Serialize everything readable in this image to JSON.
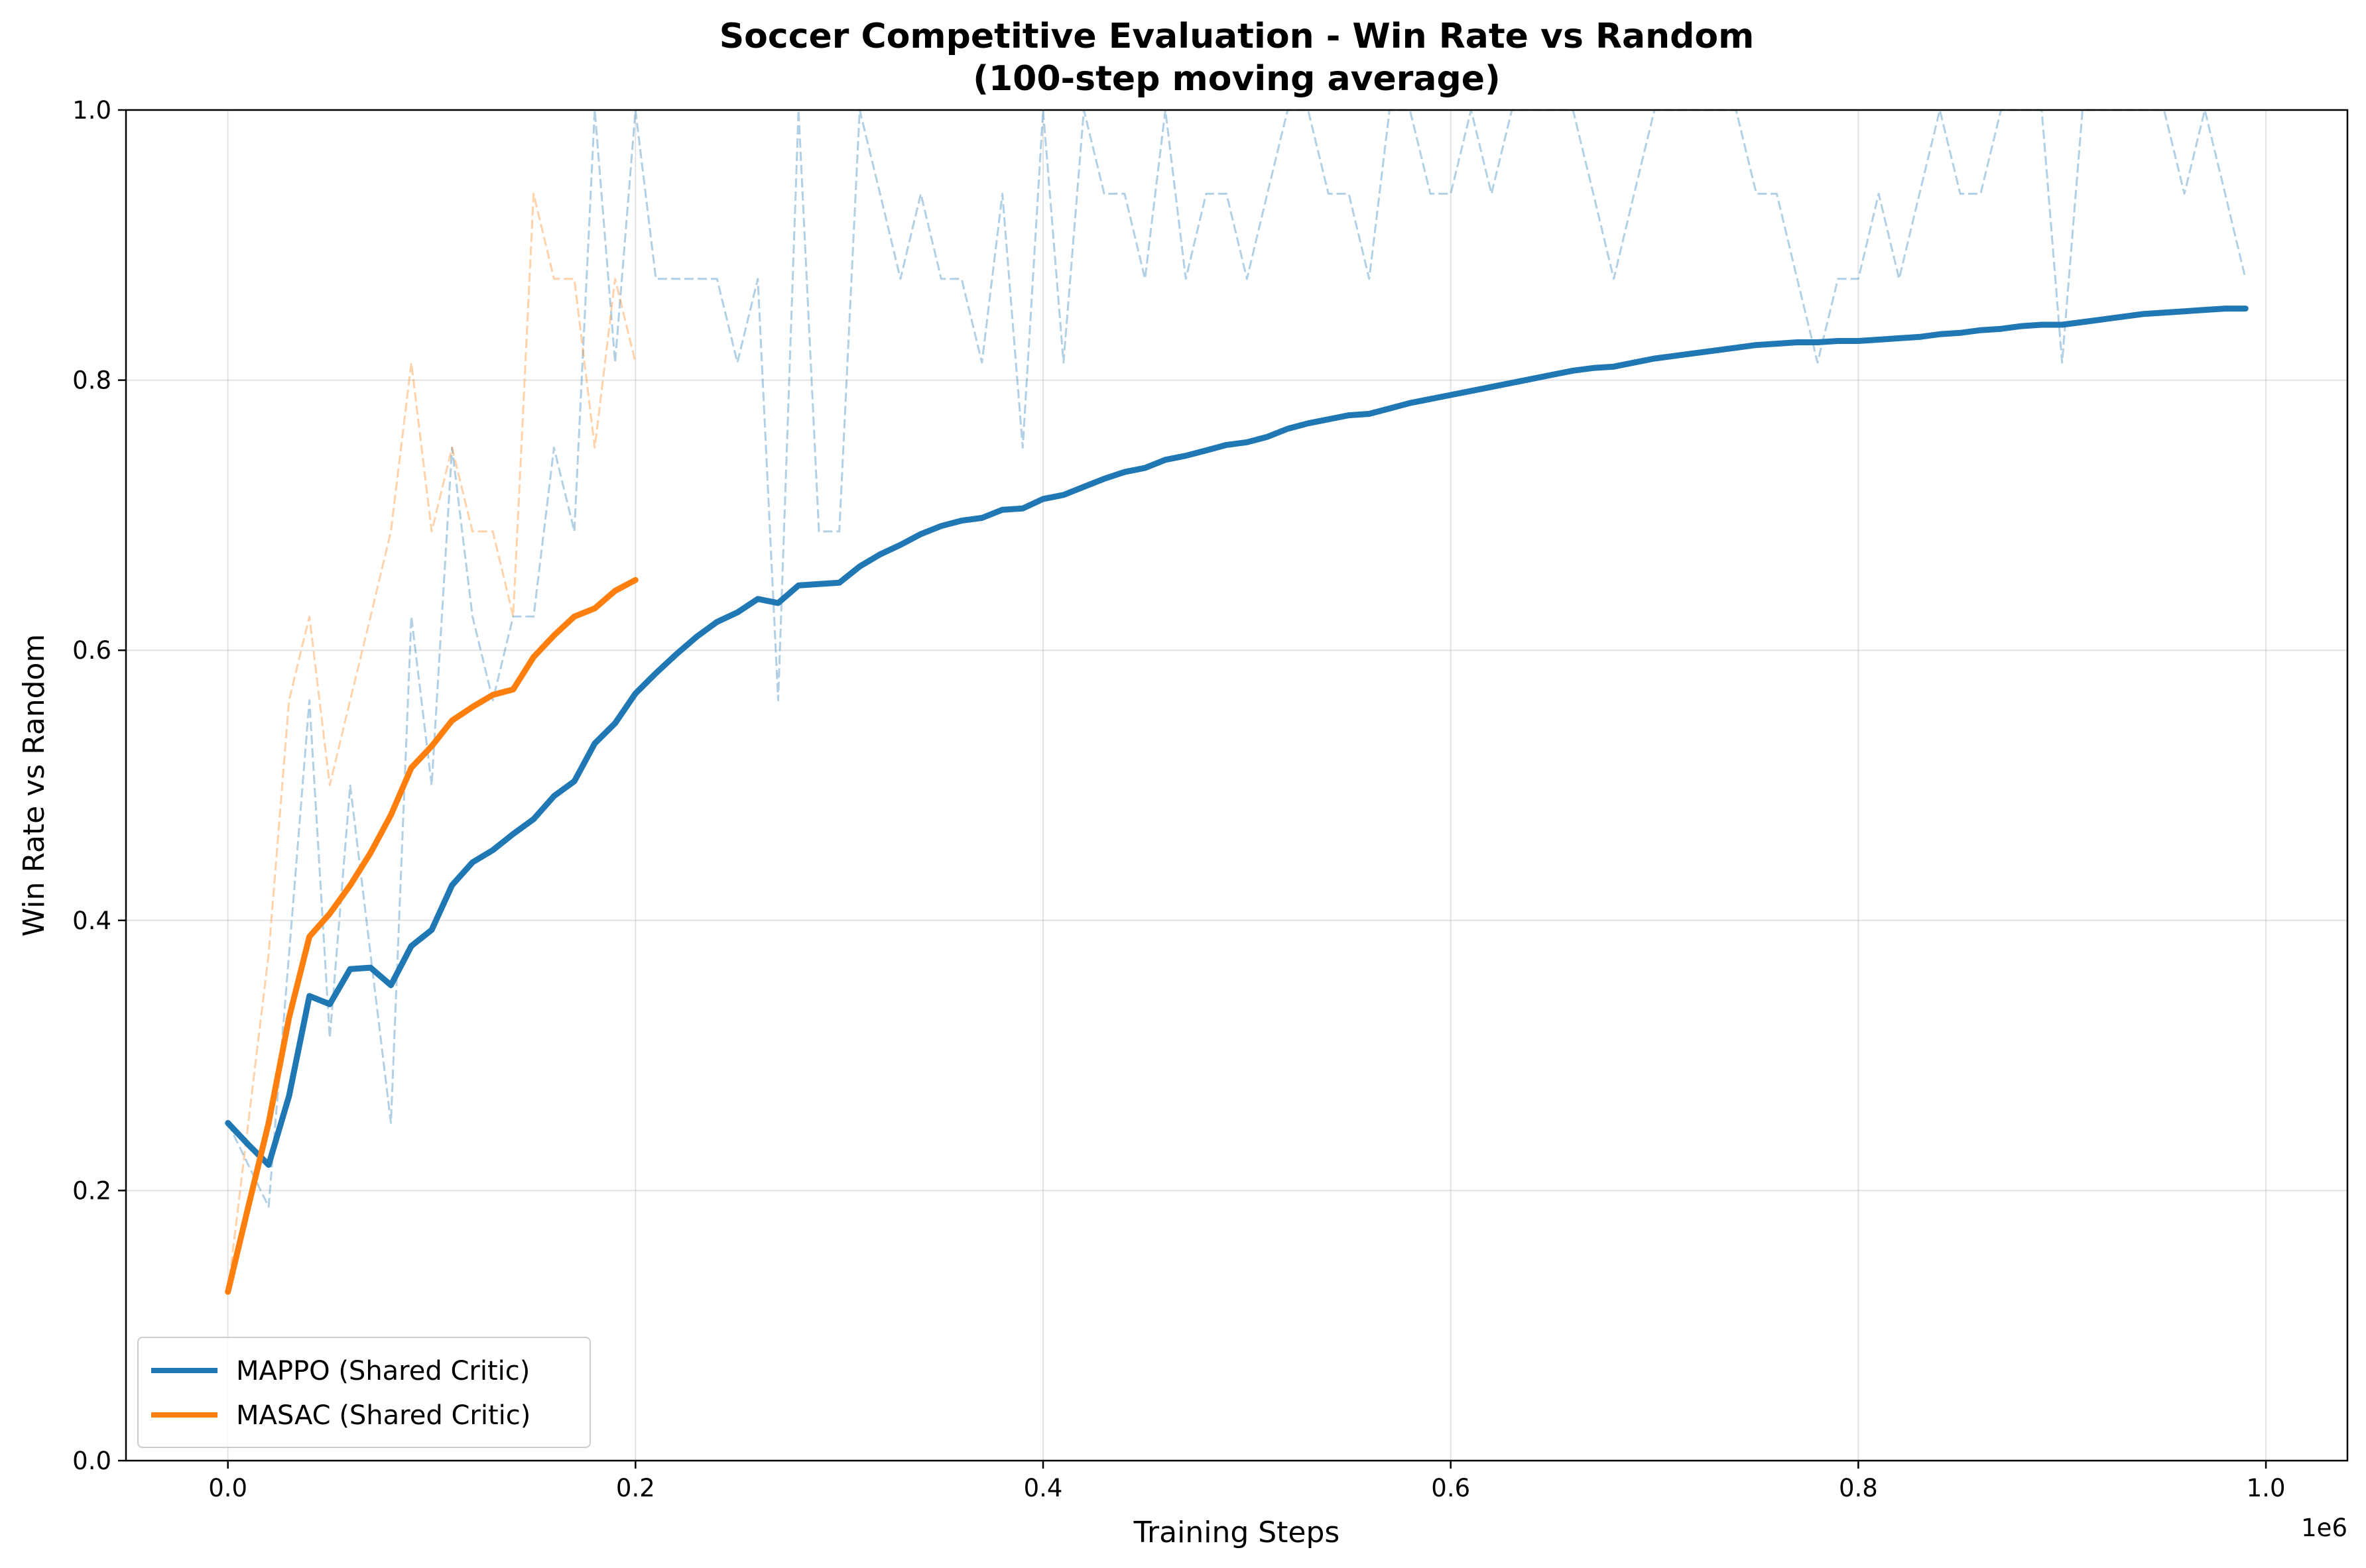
{
  "chart_data": {
    "type": "line",
    "title": "Soccer Competitive Evaluation - Win Rate vs Random",
    "subtitle": "(100-step moving average)",
    "xlabel": "Training Steps",
    "ylabel": "Win Rate vs Random",
    "x_offset_label": "1e6",
    "xlim": [
      -0.05,
      1.04
    ],
    "ylim": [
      0.0,
      1.0
    ],
    "x_ticks": [
      0.0,
      0.2,
      0.4,
      0.6,
      0.8,
      1.0
    ],
    "x_tick_labels": [
      "0.0",
      "0.2",
      "0.4",
      "0.6",
      "0.8",
      "1.0"
    ],
    "y_ticks": [
      0.0,
      0.2,
      0.4,
      0.6,
      0.8,
      1.0
    ],
    "y_tick_labels": [
      "0.0",
      "0.2",
      "0.4",
      "0.6",
      "0.8",
      "1.0"
    ],
    "grid": true,
    "legend_position": "lower-left",
    "series": [
      {
        "name": "MAPPO (Shared Critic)",
        "color": "#1f77b4",
        "x": [
          0.0,
          0.01,
          0.02,
          0.03,
          0.04,
          0.05,
          0.06,
          0.07,
          0.08,
          0.09,
          0.1,
          0.11,
          0.12,
          0.13,
          0.14,
          0.15,
          0.16,
          0.17,
          0.18,
          0.19,
          0.2,
          0.21,
          0.22,
          0.23,
          0.24,
          0.25,
          0.26,
          0.27,
          0.28,
          0.29,
          0.3,
          0.31,
          0.32,
          0.33,
          0.34,
          0.35,
          0.36,
          0.37,
          0.38,
          0.39,
          0.4,
          0.41,
          0.42,
          0.43,
          0.44,
          0.45,
          0.46,
          0.47,
          0.48,
          0.49,
          0.5,
          0.51,
          0.52,
          0.53,
          0.54,
          0.55,
          0.56,
          0.57,
          0.58,
          0.59,
          0.6,
          0.61,
          0.62,
          0.63,
          0.64,
          0.65,
          0.66,
          0.67,
          0.68,
          0.69,
          0.7,
          0.71,
          0.72,
          0.73,
          0.74,
          0.75,
          0.76,
          0.77,
          0.78,
          0.79,
          0.8,
          0.81,
          0.82,
          0.83,
          0.84,
          0.85,
          0.86,
          0.87,
          0.88,
          0.89,
          0.9,
          0.91,
          0.92,
          0.93,
          0.94,
          0.95,
          0.96,
          0.97,
          0.98,
          0.99
        ],
        "values": [
          0.25,
          0.234,
          0.219,
          0.27,
          0.344,
          0.338,
          0.364,
          0.365,
          0.352,
          0.381,
          0.393,
          0.426,
          0.443,
          0.452,
          0.464,
          0.475,
          0.492,
          0.503,
          0.531,
          0.546,
          0.568,
          0.583,
          0.597,
          0.61,
          0.621,
          0.628,
          0.638,
          0.635,
          0.648,
          0.649,
          0.65,
          0.662,
          0.671,
          0.678,
          0.686,
          0.692,
          0.696,
          0.698,
          0.704,
          0.705,
          0.712,
          0.715,
          0.721,
          0.727,
          0.732,
          0.735,
          0.741,
          0.744,
          0.748,
          0.752,
          0.754,
          0.758,
          0.764,
          0.768,
          0.771,
          0.774,
          0.775,
          0.779,
          0.783,
          0.786,
          0.789,
          0.792,
          0.795,
          0.798,
          0.801,
          0.804,
          0.807,
          0.809,
          0.81,
          0.813,
          0.816,
          0.818,
          0.82,
          0.822,
          0.824,
          0.826,
          0.827,
          0.828,
          0.828,
          0.829,
          0.829,
          0.83,
          0.831,
          0.832,
          0.834,
          0.835,
          0.837,
          0.838,
          0.84,
          0.841,
          0.841,
          0.843,
          0.845,
          0.847,
          0.849,
          0.85,
          0.851,
          0.852,
          0.853,
          0.853
        ]
      },
      {
        "name": "MASAC (Shared Critic)",
        "color": "#ff7f0e",
        "x": [
          0.0,
          0.01,
          0.02,
          0.03,
          0.04,
          0.05,
          0.06,
          0.07,
          0.08,
          0.09,
          0.1,
          0.11,
          0.12,
          0.13,
          0.14,
          0.15,
          0.16,
          0.17,
          0.18,
          0.19,
          0.2
        ],
        "values": [
          0.125,
          0.188,
          0.25,
          0.328,
          0.388,
          0.405,
          0.426,
          0.45,
          0.478,
          0.513,
          0.529,
          0.548,
          0.558,
          0.567,
          0.571,
          0.595,
          0.611,
          0.625,
          0.631,
          0.644,
          0.652
        ]
      }
    ],
    "raw_series": [
      {
        "of": "MAPPO (Shared Critic)",
        "color": "#1f77b4",
        "style": "dashed",
        "x": [
          0.0,
          0.01,
          0.02,
          0.03,
          0.04,
          0.05,
          0.06,
          0.07,
          0.08,
          0.09,
          0.1,
          0.11,
          0.12,
          0.13,
          0.14,
          0.15,
          0.16,
          0.17,
          0.18,
          0.19,
          0.2,
          0.21,
          0.22,
          0.23,
          0.24,
          0.25,
          0.26,
          0.27,
          0.28,
          0.29,
          0.3,
          0.31,
          0.32,
          0.33,
          0.34,
          0.35,
          0.36,
          0.37,
          0.38,
          0.39,
          0.4,
          0.41,
          0.42,
          0.43,
          0.44,
          0.45,
          0.46,
          0.47,
          0.48,
          0.49,
          0.5,
          0.51,
          0.52,
          0.53,
          0.54,
          0.55,
          0.56,
          0.57,
          0.58,
          0.59,
          0.6,
          0.61,
          0.62,
          0.63,
          0.64,
          0.65,
          0.66,
          0.67,
          0.68,
          0.69,
          0.7,
          0.71,
          0.72,
          0.73,
          0.74,
          0.75,
          0.76,
          0.77,
          0.78,
          0.79,
          0.8,
          0.81,
          0.82,
          0.83,
          0.84,
          0.85,
          0.86,
          0.87,
          0.88,
          0.89,
          0.9,
          0.91,
          0.92,
          0.93,
          0.94,
          0.95,
          0.96,
          0.97,
          0.98,
          0.99
        ],
        "values": [
          0.25,
          0.219,
          0.188,
          0.375,
          0.563,
          0.313,
          0.5,
          0.375,
          0.25,
          0.625,
          0.5,
          0.75,
          0.625,
          0.563,
          0.625,
          0.625,
          0.75,
          0.688,
          1.0,
          0.813,
          1.0,
          0.875,
          0.875,
          0.875,
          0.875,
          0.813,
          0.875,
          0.563,
          1.0,
          0.688,
          0.688,
          1.0,
          0.938,
          0.875,
          0.938,
          0.875,
          0.875,
          0.813,
          0.938,
          0.75,
          1.0,
          0.813,
          1.0,
          0.938,
          0.938,
          0.875,
          1.0,
          0.875,
          0.938,
          0.938,
          0.875,
          0.938,
          1.0,
          1.0,
          0.938,
          0.938,
          0.875,
          1.0,
          1.0,
          0.938,
          0.938,
          1.0,
          0.938,
          1.0,
          1.0,
          1.0,
          1.0,
          0.938,
          0.875,
          0.938,
          1.0,
          1.0,
          1.0,
          1.0,
          1.0,
          0.938,
          0.938,
          0.875,
          0.813,
          0.875,
          0.875,
          0.938,
          0.875,
          0.938,
          1.0,
          0.938,
          0.938,
          1.0,
          1.0,
          1.0,
          0.813,
          1.0,
          1.0,
          1.0,
          1.0,
          1.0,
          0.938,
          1.0,
          0.938,
          0.875
        ]
      },
      {
        "of": "MASAC (Shared Critic)",
        "color": "#ff7f0e",
        "style": "dashed",
        "x": [
          0.0,
          0.01,
          0.02,
          0.03,
          0.04,
          0.05,
          0.06,
          0.07,
          0.08,
          0.09,
          0.1,
          0.11,
          0.12,
          0.13,
          0.14,
          0.15,
          0.16,
          0.17,
          0.18,
          0.19,
          0.2
        ],
        "values": [
          0.125,
          0.25,
          0.375,
          0.563,
          0.625,
          0.5,
          0.563,
          0.625,
          0.688,
          0.813,
          0.688,
          0.75,
          0.688,
          0.688,
          0.625,
          0.938,
          0.875,
          0.875,
          0.75,
          0.875,
          0.813
        ]
      }
    ]
  }
}
